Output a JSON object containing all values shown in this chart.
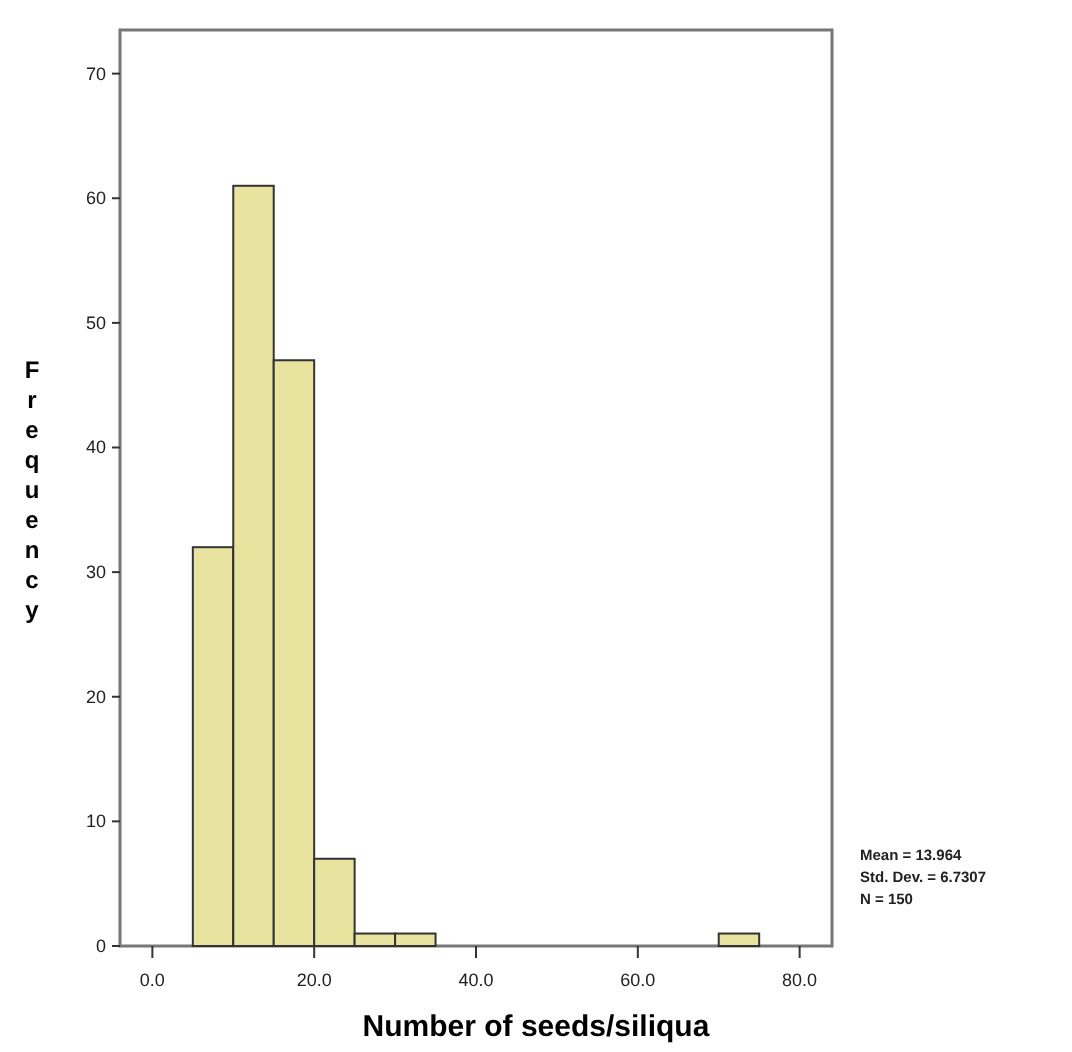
{
  "chart_data": {
    "type": "histogram",
    "xlabel": "Number of seeds/siliqua",
    "ylabel": "Frequency",
    "bins": [
      5,
      10,
      15,
      20,
      25,
      30,
      35,
      40,
      45,
      50,
      55,
      60,
      65,
      70,
      75
    ],
    "values": [
      32,
      61,
      47,
      7,
      1,
      1,
      0,
      0,
      0,
      0,
      0,
      0,
      0,
      1
    ],
    "color": "#e8e4a0",
    "xlim": [
      -4,
      84
    ],
    "xticks": [
      {
        "value": 0,
        "label": "0.0"
      },
      {
        "value": 20,
        "label": "20.0"
      },
      {
        "value": 40,
        "label": "40.0"
      },
      {
        "value": 60,
        "label": "60.0"
      },
      {
        "value": 80,
        "label": "80.0"
      }
    ],
    "ylim": [
      0,
      73.5
    ],
    "yticks": [
      0,
      10,
      20,
      30,
      40,
      50,
      60,
      70
    ],
    "annotations": [
      "Mean = 13.964",
      "Std. Dev. = 6.7307",
      "N = 150"
    ]
  }
}
